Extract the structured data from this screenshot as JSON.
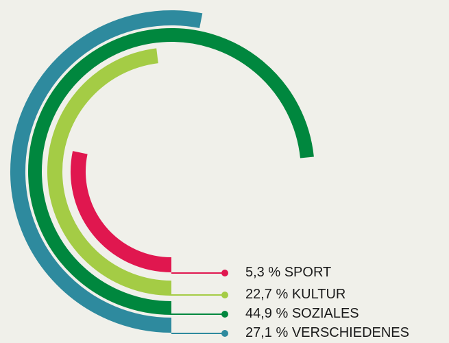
{
  "chart_data": {
    "type": "radial-bar",
    "series": [
      {
        "name": "SPORT",
        "color": "#e0174f",
        "values": [
          5.3
        ],
        "value_labels": [
          "5,3 %"
        ]
      },
      {
        "name": "KULTUR",
        "color": "#a4cc45",
        "values": [
          22.7
        ],
        "value_labels": [
          "22,7 %"
        ]
      },
      {
        "name": "SOZIALES",
        "color": "#00873e",
        "values": [
          44.9
        ],
        "value_labels": [
          "44,9 %"
        ]
      },
      {
        "name": "VERSCHIEDENES",
        "color": "#2e8a9e",
        "values": [
          27.1
        ],
        "value_labels": [
          "27,1 %"
        ]
      }
    ]
  }
}
